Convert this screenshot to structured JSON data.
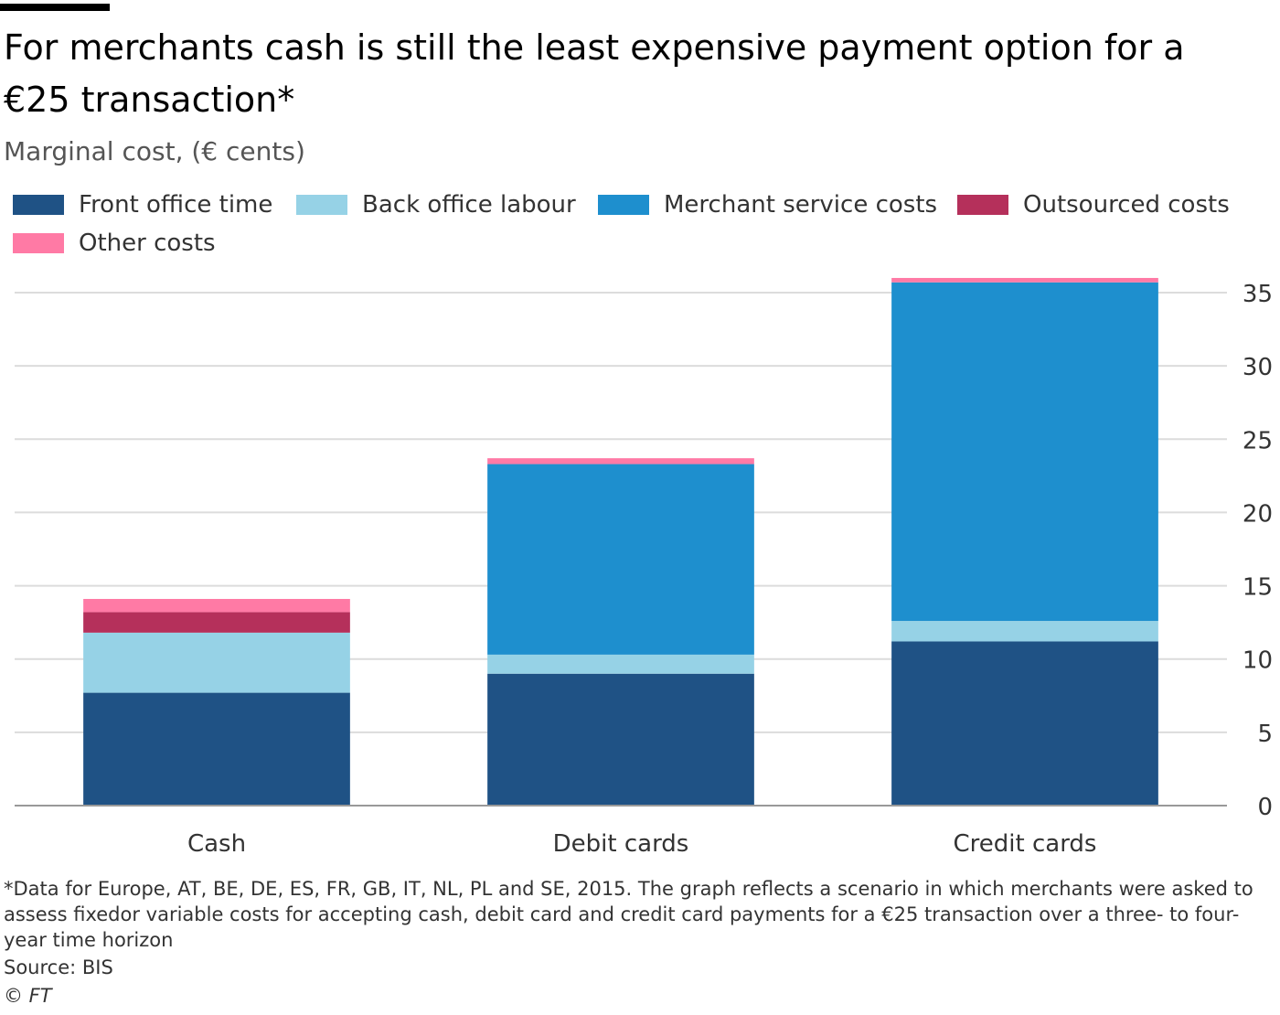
{
  "header": {
    "title": "For merchants cash is still the least expensive payment option for a €25 transaction*",
    "subtitle": "Marginal cost, (€ cents)"
  },
  "footer": {
    "footnote": "*Data for Europe, AT, BE, DE, ES, FR, GB, IT, NL, PL and SE, 2015. The graph reflects a scenario in which merchants were asked to assess fixedor variable costs for accepting cash, debit card and credit card payments for a €25 transaction over a three- to four-year time horizon",
    "source": "Source: BIS",
    "copyright": "© FT"
  },
  "chart_data": {
    "type": "bar",
    "stacked": true,
    "categories": [
      "Cash",
      "Debit cards",
      "Credit cards"
    ],
    "series": [
      {
        "name": "Front office time",
        "color": "#1f5285",
        "values": [
          7.7,
          9.0,
          11.2
        ]
      },
      {
        "name": "Back office labour",
        "color": "#96d2e6",
        "values": [
          4.1,
          1.3,
          1.4
        ]
      },
      {
        "name": "Merchant service costs",
        "color": "#1e8fce",
        "values": [
          0,
          13.0,
          23.1
        ]
      },
      {
        "name": "Outsourced costs",
        "color": "#b5305b",
        "values": [
          1.4,
          0,
          0
        ]
      },
      {
        "name": "Other costs",
        "color": "#ff7aa5",
        "values": [
          0.9,
          0.4,
          0.3
        ]
      }
    ],
    "ylim": [
      0,
      35
    ],
    "yticks": [
      0,
      5,
      10,
      15,
      20,
      25,
      30,
      35
    ],
    "grid": true,
    "y_axis_side": "right",
    "legend_placement": "top-left",
    "title": "For merchants cash is still the least expensive payment option for a €25 transaction*",
    "xlabel": "",
    "ylabel": ""
  }
}
